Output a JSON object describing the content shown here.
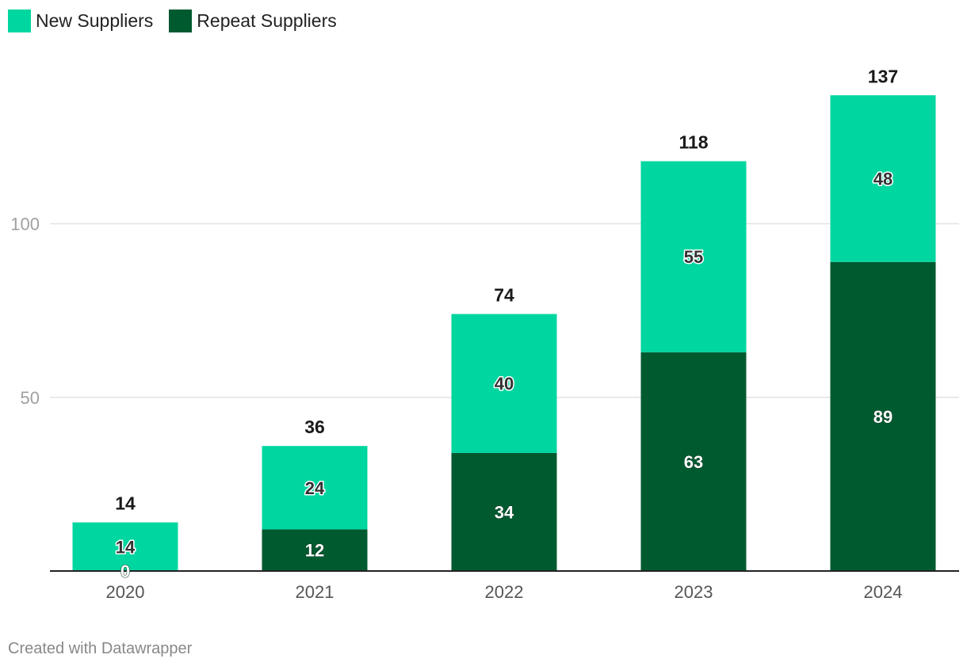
{
  "legend": {
    "new_label": "New Suppliers",
    "repeat_label": "Repeat Suppliers"
  },
  "footer": {
    "credit": "Created with Datawrapper"
  },
  "chart_data": {
    "type": "bar",
    "stacked": true,
    "categories": [
      "2020",
      "2021",
      "2022",
      "2023",
      "2024"
    ],
    "series": [
      {
        "name": "Repeat Suppliers",
        "values": [
          0,
          12,
          34,
          63,
          89
        ],
        "color": "#005a30"
      },
      {
        "name": "New Suppliers",
        "values": [
          14,
          24,
          40,
          55,
          48
        ],
        "color": "#00d6a0"
      }
    ],
    "totals": [
      14,
      36,
      74,
      118,
      137
    ],
    "ylim": [
      0,
      137
    ],
    "yticks": [
      50,
      100
    ],
    "grid": true,
    "legend_position": "top-left",
    "title": "",
    "xlabel": "",
    "ylabel": ""
  }
}
